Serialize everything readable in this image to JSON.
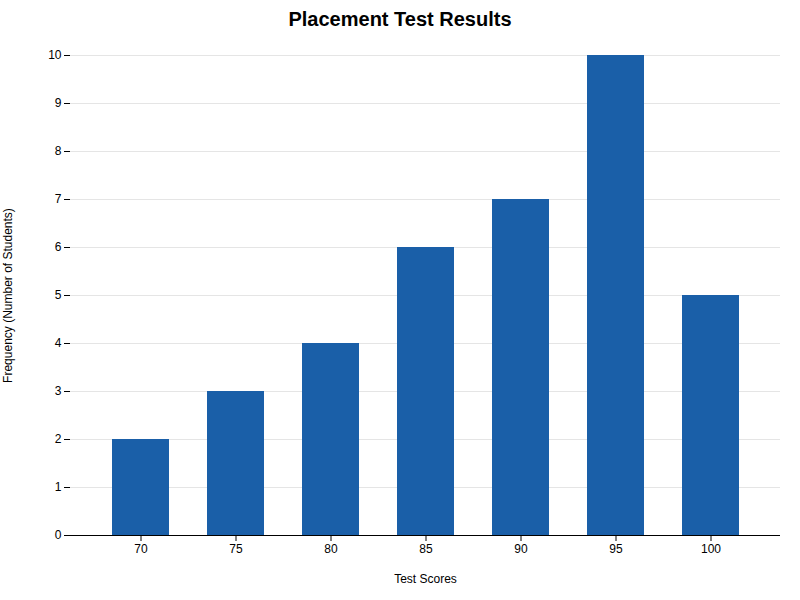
{
  "chart_data": {
    "type": "bar",
    "title": "Placement Test Results",
    "xlabel": "Test Scores",
    "ylabel": "Frequency (Number of Students)",
    "categories": [
      "70",
      "75",
      "80",
      "85",
      "90",
      "95",
      "100"
    ],
    "values": [
      2,
      3,
      4,
      6,
      7,
      10,
      5
    ],
    "color": "#1a5fa8",
    "ylim": [
      0,
      10
    ],
    "yticks": [
      0,
      1,
      2,
      3,
      4,
      5,
      6,
      7,
      8,
      9,
      10
    ],
    "grid": true
  }
}
